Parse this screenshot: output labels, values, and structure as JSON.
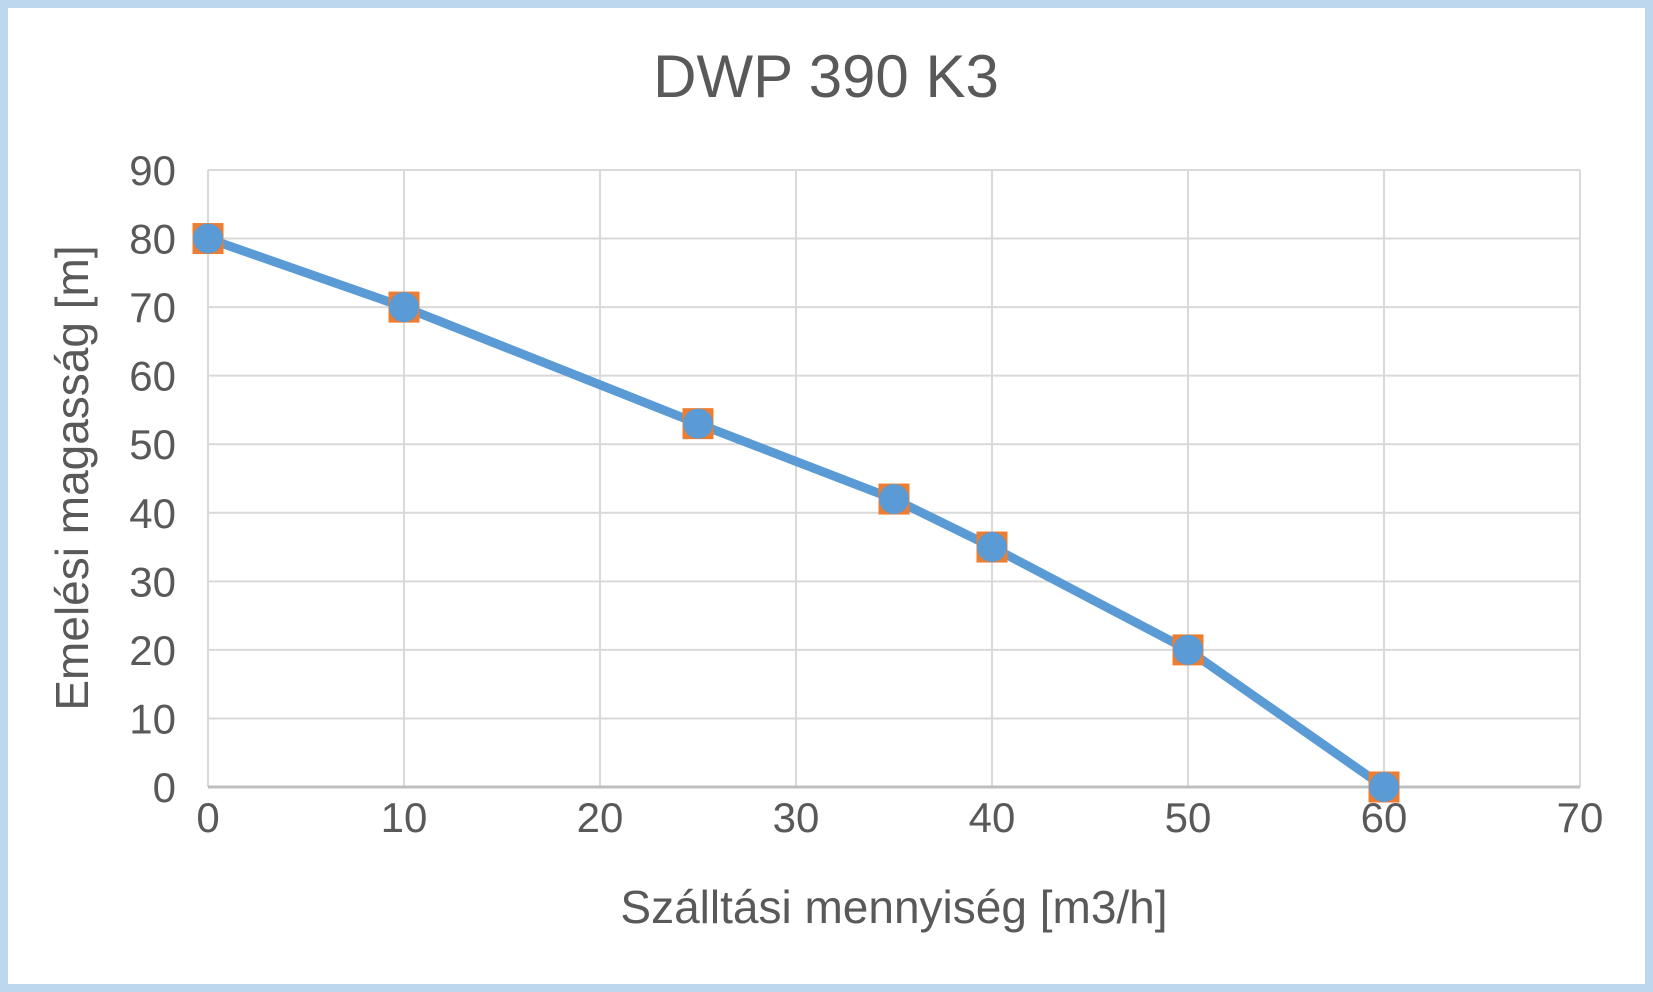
{
  "page": {
    "background": "#FFFFFF",
    "frame_color": "#BDD7EE"
  },
  "chart_data": {
    "type": "line",
    "title": "DWP 390 K3",
    "xlabel": "Szálltási mennyiség [m3/h]",
    "ylabel": "Emelési magasság [m]",
    "x": [
      0,
      10,
      25,
      35,
      40,
      50,
      60
    ],
    "y": [
      80,
      70,
      53,
      42,
      35,
      20,
      0
    ],
    "xlim": [
      0,
      70
    ],
    "ylim": [
      0,
      90
    ],
    "xticks": [
      0,
      10,
      20,
      30,
      40,
      50,
      60,
      70
    ],
    "yticks": [
      0,
      10,
      20,
      30,
      40,
      50,
      60,
      70,
      80,
      90
    ],
    "grid": true,
    "legend": false,
    "colors": {
      "line": "#5B9BD5",
      "marker_fill": "#5B9BD5",
      "marker_border": "#ED7D31",
      "gridline": "#D9D9D9",
      "axis_line": "#BFBFBF",
      "text": "#595959"
    }
  }
}
